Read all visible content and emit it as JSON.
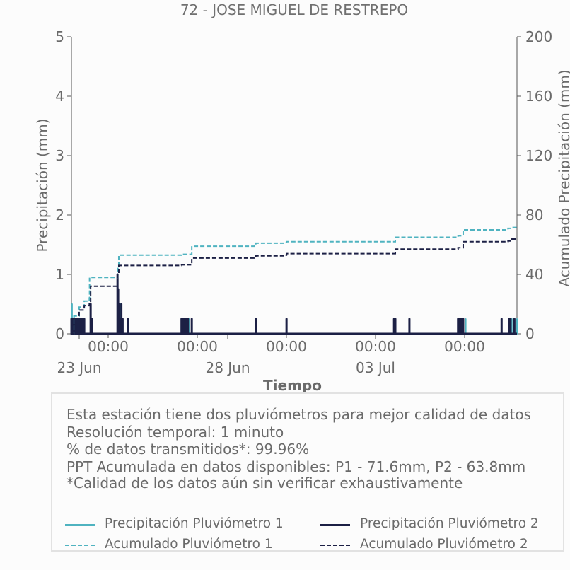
{
  "chart_data": {
    "type": "line",
    "title": "72 - JOSE MIGUEL DE RESTREPO",
    "xlabel": "Tiempo",
    "ylabel": "Precipitación (mm)",
    "y2label": "Acumulado Precipitación (mm)",
    "ylim": [
      0,
      5
    ],
    "y2lim": [
      0,
      200
    ],
    "yticks": [
      0,
      1,
      2,
      3,
      4,
      5
    ],
    "y2ticks": [
      0,
      40,
      80,
      120,
      160,
      200
    ],
    "xlim": [
      "2023-06-22T12:00",
      "2023-07-07T00:00"
    ],
    "xticks_minor_labels": [
      "00:00",
      "00:00",
      "00:00",
      "00:00",
      "00:00"
    ],
    "xticks_major_labels": [
      "23 Jun",
      "28 Jun",
      "03 Jul"
    ],
    "series": [
      {
        "name": "Precipitación Pluviómetro 1",
        "color": "#4fb3c0",
        "style": "solid",
        "axis": "left",
        "x": [
          "2023-06-22T12:00",
          "2023-06-22T12:30",
          "2023-06-22T14:00",
          "2023-06-22T16:00",
          "2023-06-22T18:00",
          "2023-06-22T20:00",
          "2023-06-22T22:00",
          "2023-06-23T03:00",
          "2023-06-23T04:00",
          "2023-06-24T00:00",
          "2023-06-24T02:00",
          "2023-06-24T04:00",
          "2023-06-24T08:00",
          "2023-06-26T02:00",
          "2023-06-26T04:00",
          "2023-06-26T06:00",
          "2023-06-26T08:00",
          "2023-06-26T10:00",
          "2023-06-28T12:00",
          "2023-06-29T12:00",
          "2023-07-03T00:00",
          "2023-07-03T01:00",
          "2023-07-03T12:00",
          "2023-07-05T02:00",
          "2023-07-05T04:00",
          "2023-07-05T08:00",
          "2023-07-06T18:00",
          "2023-07-06T20:00",
          "2023-07-07T00:00"
        ],
        "values": [
          0.25,
          0.5,
          0.3,
          0.25,
          0.25,
          0.25,
          0.25,
          0.5,
          0.25,
          0.75,
          0.5,
          0.25,
          0.25,
          0.25,
          0.25,
          0.25,
          0.25,
          0.25,
          0.25,
          0.25,
          0.25,
          0.25,
          0.25,
          0.25,
          0.25,
          0.25,
          0.25,
          0.25,
          0.25
        ]
      },
      {
        "name": "Precipitación Pluviómetro 2",
        "color": "#1c2045",
        "style": "solid",
        "axis": "left",
        "x": [
          "2023-06-22T12:00",
          "2023-06-22T13:00",
          "2023-06-22T14:00",
          "2023-06-22T15:00",
          "2023-06-22T16:00",
          "2023-06-22T17:00",
          "2023-06-22T18:00",
          "2023-06-22T19:00",
          "2023-06-22T20:00",
          "2023-06-22T21:00",
          "2023-06-22T22:00",
          "2023-06-23T03:00",
          "2023-06-23T03:30",
          "2023-06-23T04:00",
          "2023-06-24T00:00",
          "2023-06-24T00:30",
          "2023-06-24T01:00",
          "2023-06-24T02:00",
          "2023-06-24T03:00",
          "2023-06-24T04:00",
          "2023-06-24T08:00",
          "2023-06-26T02:00",
          "2023-06-26T03:00",
          "2023-06-26T04:00",
          "2023-06-26T05:00",
          "2023-06-26T06:00",
          "2023-06-26T07:00",
          "2023-06-26T10:00",
          "2023-06-28T12:00",
          "2023-06-29T12:00",
          "2023-07-03T00:00",
          "2023-07-03T00:30",
          "2023-07-03T01:00",
          "2023-07-03T12:00",
          "2023-07-05T02:00",
          "2023-07-05T03:00",
          "2023-07-05T04:00",
          "2023-07-05T05:00",
          "2023-07-05T06:00",
          "2023-07-06T12:00",
          "2023-07-06T18:00",
          "2023-07-06T19:00",
          "2023-07-06T22:00"
        ],
        "values": [
          0.25,
          0.25,
          0.25,
          0.25,
          0.25,
          0.25,
          0.25,
          0.25,
          0.25,
          0.25,
          0.25,
          0.5,
          0.25,
          0.25,
          1.0,
          0.75,
          0.5,
          0.25,
          0.5,
          0.25,
          0.25,
          0.25,
          0.25,
          0.25,
          0.25,
          0.25,
          0.25,
          0.25,
          0.25,
          0.25,
          0.25,
          0.25,
          0.25,
          0.25,
          0.25,
          0.25,
          0.25,
          0.25,
          0.25,
          0.25,
          0.25,
          0.25,
          0.25
        ]
      },
      {
        "name": "Acumulado Pluviómetro 1",
        "color": "#4fb3c0",
        "style": "dashed",
        "axis": "right",
        "x": [
          "2023-06-22T12:00",
          "2023-06-22T14:00",
          "2023-06-22T18:00",
          "2023-06-22T22:00",
          "2023-06-23T02:00",
          "2023-06-23T02:10",
          "2023-06-23T23:30",
          "2023-06-24T00:00",
          "2023-06-24T01:00",
          "2023-06-26T02:00",
          "2023-06-26T10:00",
          "2023-06-28T11:00",
          "2023-06-28T12:00",
          "2023-06-29T11:00",
          "2023-06-29T12:00",
          "2023-07-02T23:00",
          "2023-07-03T01:00",
          "2023-07-05T02:00",
          "2023-07-05T06:00",
          "2023-07-06T17:00",
          "2023-07-06T19:00",
          "2023-07-07T00:00"
        ],
        "values": [
          0,
          12,
          18,
          22,
          24,
          38,
          38,
          44,
          53,
          53.5,
          59,
          59.5,
          61,
          61.5,
          62,
          62,
          65,
          66,
          70,
          71,
          71.6,
          71.6
        ]
      },
      {
        "name": "Acumulado Pluviómetro 2",
        "color": "#1c2045",
        "style": "dashed",
        "axis": "right",
        "x": [
          "2023-06-22T12:00",
          "2023-06-22T14:00",
          "2023-06-22T18:00",
          "2023-06-22T22:00",
          "2023-06-23T02:00",
          "2023-06-23T03:00",
          "2023-06-23T23:30",
          "2023-06-24T00:00",
          "2023-06-24T01:00",
          "2023-06-26T02:00",
          "2023-06-26T10:00",
          "2023-06-28T11:00",
          "2023-06-28T12:00",
          "2023-06-29T11:00",
          "2023-06-29T12:00",
          "2023-07-02T23:00",
          "2023-07-03T01:00",
          "2023-07-05T02:00",
          "2023-07-05T06:00",
          "2023-07-06T17:00",
          "2023-07-06T19:00",
          "2023-07-07T00:00"
        ],
        "values": [
          0,
          10,
          16,
          19,
          20,
          32,
          32,
          40,
          46,
          46.5,
          51,
          51.5,
          52.5,
          53,
          54,
          54,
          57,
          58,
          62,
          62.5,
          63.8,
          63.8
        ]
      }
    ]
  },
  "info": {
    "lines": [
      "Esta estación tiene dos pluviómetros para mejor calidad de datos",
      "Resolución temporal: 1 minuto",
      "% de datos transmitidos*: 99.96%",
      "PPT Acumulada en datos disponibles: P1 - 71.6mm, P2 - 63.8mm",
      "*Calidad de los datos aún sin verificar exhaustivamente"
    ]
  },
  "legend": {
    "items": [
      {
        "label": "Precipitación Pluviómetro 1",
        "color": "#4fb3c0",
        "style": "solid"
      },
      {
        "label": "Precipitación Pluviómetro 2",
        "color": "#1c2045",
        "style": "solid"
      },
      {
        "label": "Acumulado Pluviómetro 1",
        "color": "#4fb3c0",
        "style": "dashed"
      },
      {
        "label": "Acumulado Pluviómetro 2",
        "color": "#1c2045",
        "style": "dashed"
      }
    ]
  }
}
